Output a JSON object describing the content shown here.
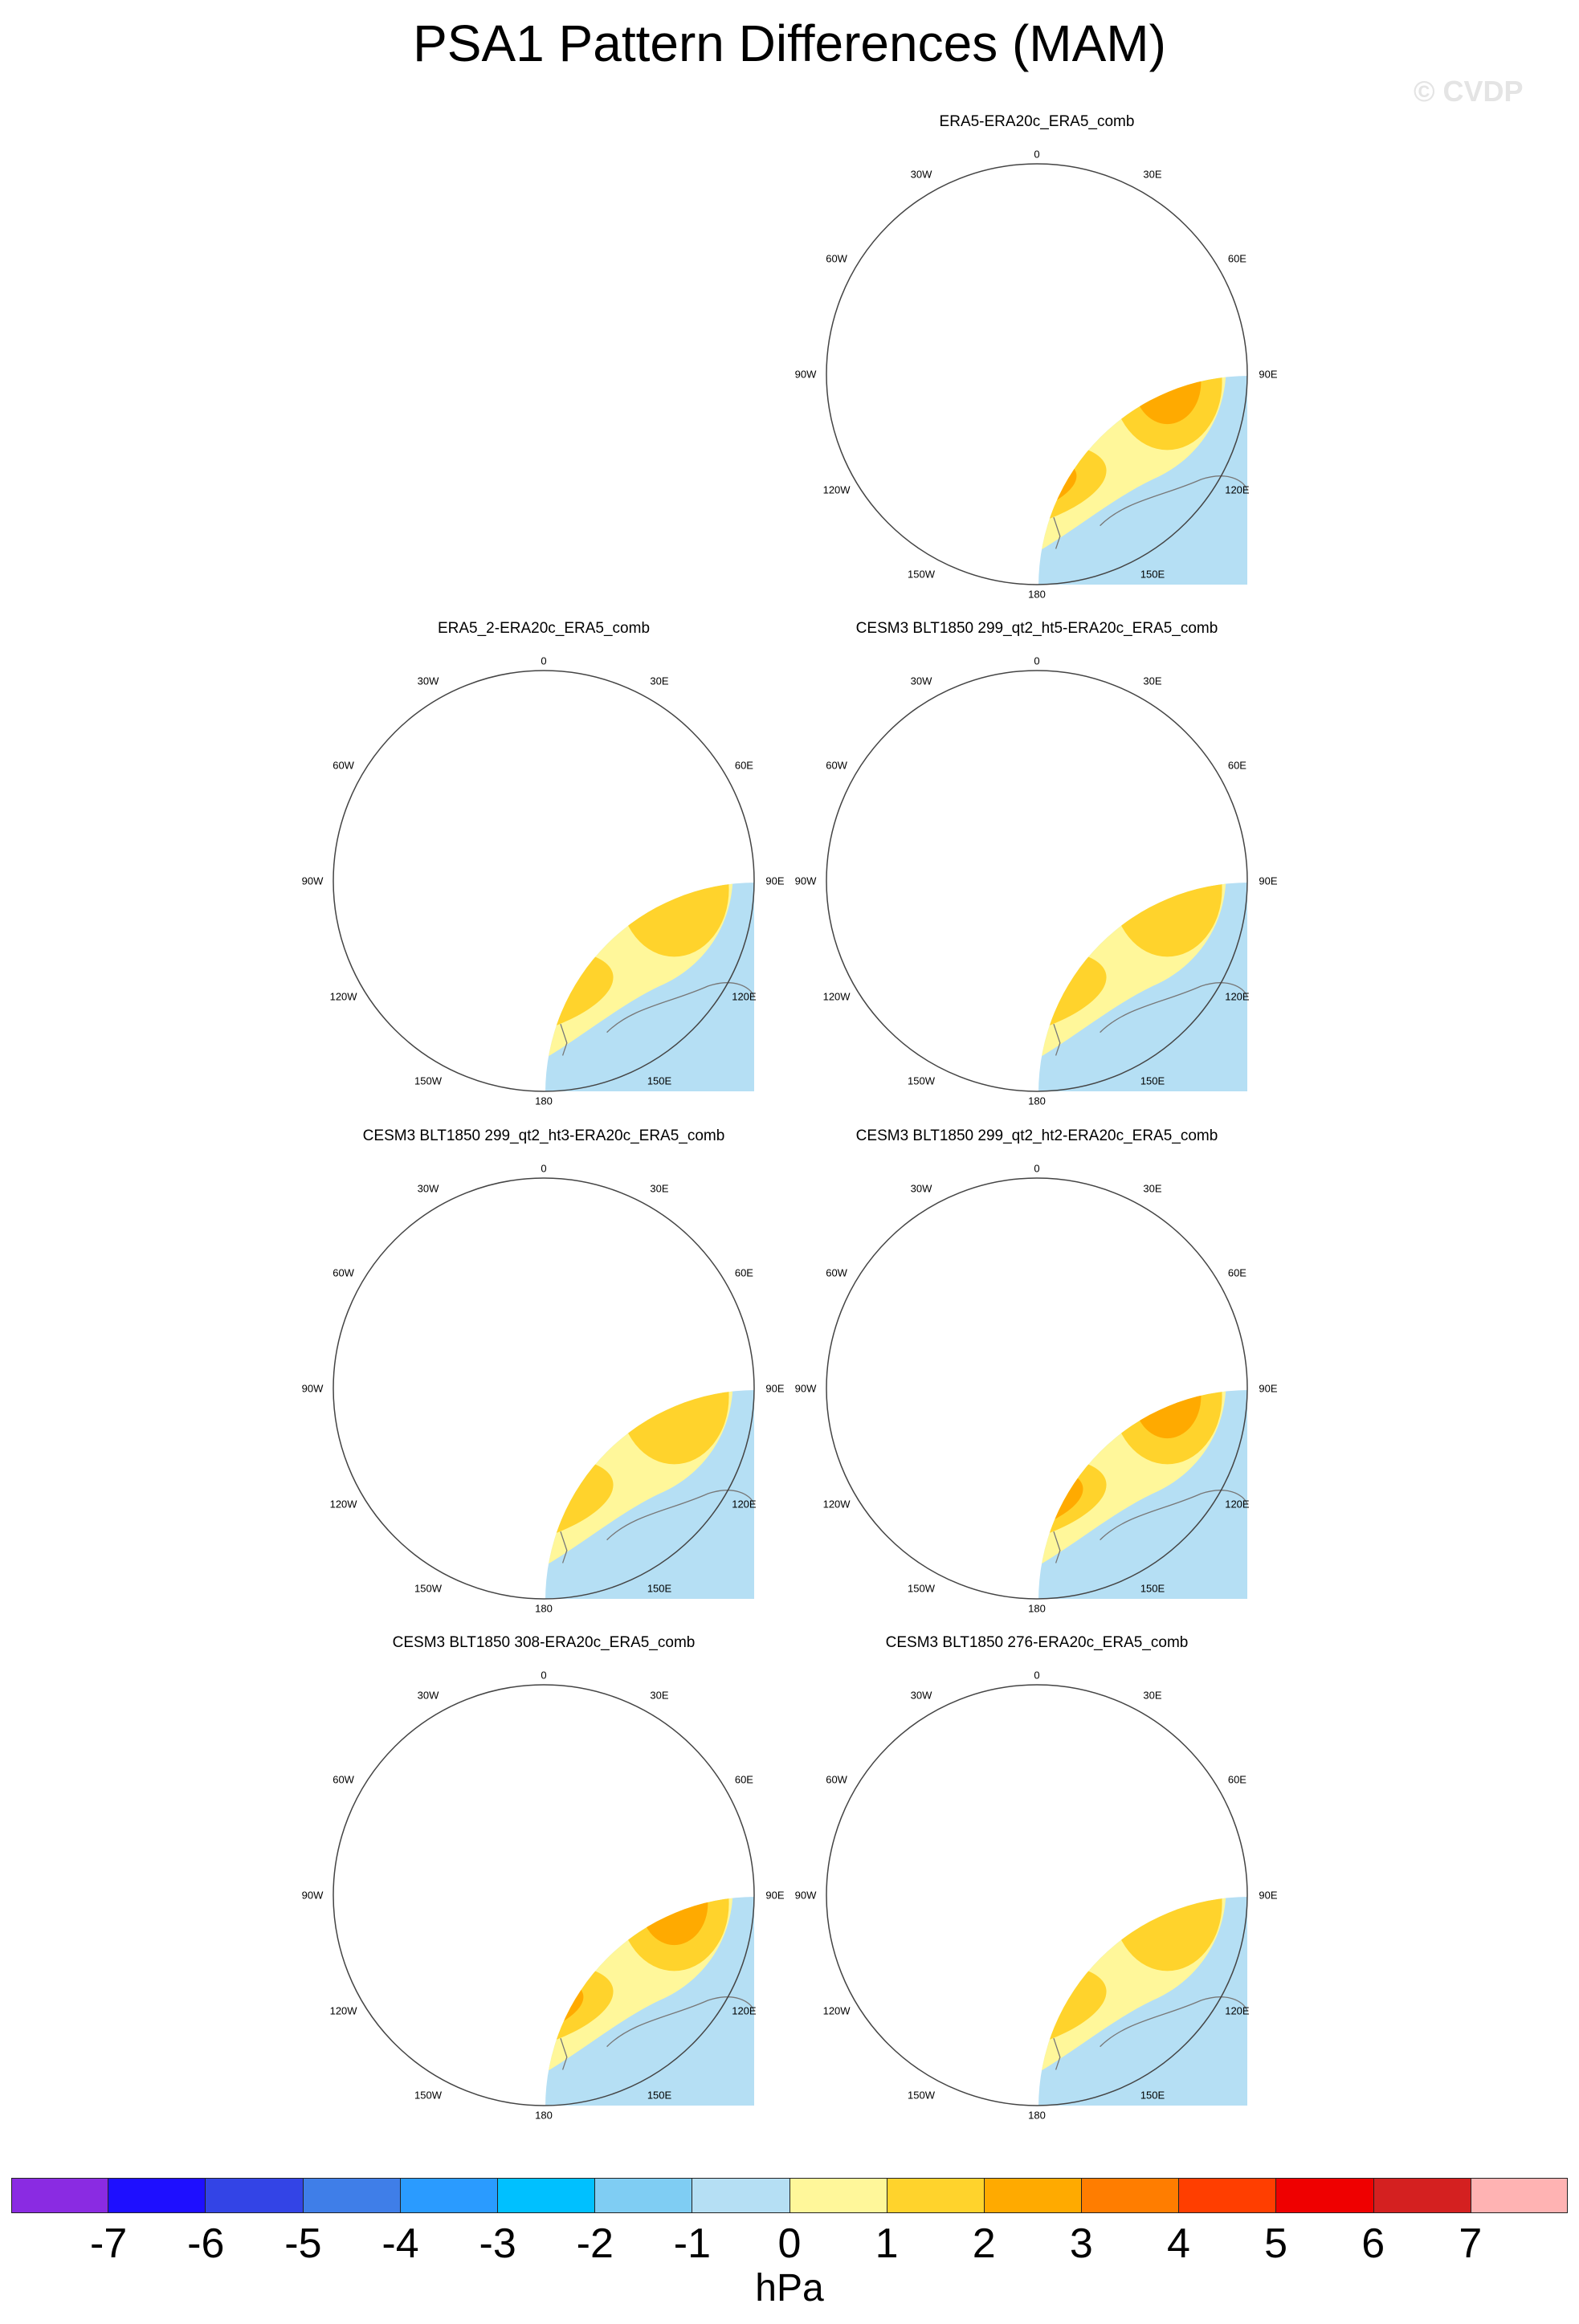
{
  "title": "PSA1 Pattern Differences (MAM)",
  "watermark": "© CVDP",
  "units": "hPa",
  "longitude_labels": {
    "top": "0",
    "bottom": "180",
    "upper_left": "30W",
    "upper_right": "30E",
    "mid_upper_left": "60W",
    "mid_upper_right": "60E",
    "left": "90W",
    "right": "90E",
    "mid_lower_left": "120W",
    "mid_lower_right": "120E",
    "lower_left": "150W",
    "lower_right": "150E"
  },
  "colors": {
    "ocean_near_zero": "#b5dff4",
    "land_outline": "#777777",
    "map_border": "#444444"
  },
  "panels": [
    {
      "title": "ERA5-ERA20c_ERA5_comb",
      "low_level": -6,
      "high_level": 4
    },
    {
      "title": "ERA5_2-ERA20c_ERA5_comb",
      "low_level": -6,
      "high_level": 3
    },
    {
      "title": "CESM3 BLT1850 299_qt2_ht5-ERA20c_ERA5_comb",
      "low_level": -5,
      "high_level": 3
    },
    {
      "title": "CESM3 BLT1850 299_qt2_ht3-ERA20c_ERA5_comb",
      "low_level": -5,
      "high_level": 3
    },
    {
      "title": "CESM3 BLT1850 299_qt2_ht2-ERA20c_ERA5_comb",
      "low_level": -5,
      "high_level": 5
    },
    {
      "title": "CESM3 BLT1850 308-ERA20c_ERA5_comb",
      "low_level": -6,
      "high_level": 4
    },
    {
      "title": "CESM3 BLT1850 276-ERA20c_ERA5_comb",
      "low_level": -6,
      "high_level": 3
    }
  ],
  "colorbar": {
    "colors": [
      "#8a2be2",
      "#1e0fff",
      "#3344e6",
      "#3f7ee8",
      "#2a9bff",
      "#00c0ff",
      "#7fcdf3",
      "#b5dff4",
      "#fff79a",
      "#ffd32c",
      "#ffaa00",
      "#ff7d00",
      "#ff3e00",
      "#ef0000",
      "#d42020",
      "#ffb3b3"
    ],
    "labels": [
      "-7",
      "-6",
      "-5",
      "-4",
      "-3",
      "-2",
      "-1",
      "0",
      "1",
      "2",
      "3",
      "4",
      "5",
      "6",
      "7"
    ]
  }
}
